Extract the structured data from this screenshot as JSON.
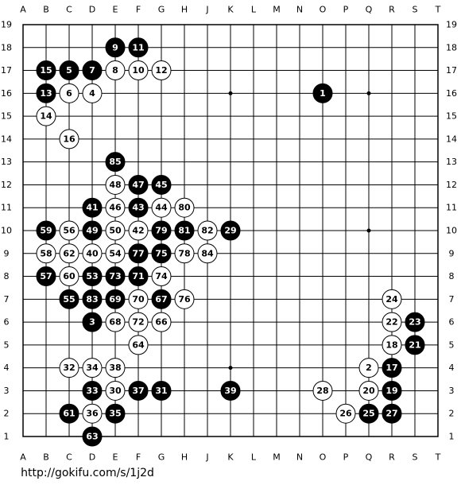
{
  "board": {
    "columns": [
      "A",
      "B",
      "C",
      "D",
      "E",
      "F",
      "G",
      "H",
      "J",
      "K",
      "L",
      "M",
      "N",
      "O",
      "P",
      "Q",
      "R",
      "S",
      "T"
    ],
    "rows": [
      19,
      18,
      17,
      16,
      15,
      14,
      13,
      12,
      11,
      10,
      9,
      8,
      7,
      6,
      5,
      4,
      3,
      2,
      1
    ],
    "stones": [
      {
        "point": "E18",
        "color": "black",
        "move": 9
      },
      {
        "point": "F18",
        "color": "black",
        "move": 11
      },
      {
        "point": "B17",
        "color": "black",
        "move": 15
      },
      {
        "point": "C17",
        "color": "black",
        "move": 5
      },
      {
        "point": "D17",
        "color": "black",
        "move": 7
      },
      {
        "point": "E17",
        "color": "white",
        "move": 8
      },
      {
        "point": "F17",
        "color": "white",
        "move": 10
      },
      {
        "point": "G17",
        "color": "white",
        "move": 12
      },
      {
        "point": "B16",
        "color": "black",
        "move": 13
      },
      {
        "point": "C16",
        "color": "white",
        "move": 6
      },
      {
        "point": "D16",
        "color": "white",
        "move": 4
      },
      {
        "point": "O16",
        "color": "black",
        "move": 1
      },
      {
        "point": "B15",
        "color": "white",
        "move": 14
      },
      {
        "point": "C14",
        "color": "white",
        "move": 16
      },
      {
        "point": "E13",
        "color": "black",
        "move": 85
      },
      {
        "point": "E12",
        "color": "white",
        "move": 48
      },
      {
        "point": "F12",
        "color": "black",
        "move": 47
      },
      {
        "point": "G12",
        "color": "black",
        "move": 45
      },
      {
        "point": "D11",
        "color": "black",
        "move": 41
      },
      {
        "point": "E11",
        "color": "white",
        "move": 46
      },
      {
        "point": "F11",
        "color": "black",
        "move": 43
      },
      {
        "point": "G11",
        "color": "white",
        "move": 44
      },
      {
        "point": "H11",
        "color": "white",
        "move": 80
      },
      {
        "point": "B10",
        "color": "black",
        "move": 59
      },
      {
        "point": "C10",
        "color": "white",
        "move": 56
      },
      {
        "point": "D10",
        "color": "black",
        "move": 49
      },
      {
        "point": "E10",
        "color": "white",
        "move": 50
      },
      {
        "point": "F10",
        "color": "white",
        "move": 42
      },
      {
        "point": "G10",
        "color": "black",
        "move": 79
      },
      {
        "point": "H10",
        "color": "black",
        "move": 81
      },
      {
        "point": "J10",
        "color": "white",
        "move": 82
      },
      {
        "point": "K10",
        "color": "black",
        "move": 29
      },
      {
        "point": "B9",
        "color": "white",
        "move": 58
      },
      {
        "point": "C9",
        "color": "white",
        "move": 62
      },
      {
        "point": "D9",
        "color": "white",
        "move": 40
      },
      {
        "point": "E9",
        "color": "white",
        "move": 54
      },
      {
        "point": "F9",
        "color": "black",
        "move": 77
      },
      {
        "point": "G9",
        "color": "black",
        "move": 75
      },
      {
        "point": "H9",
        "color": "white",
        "move": 78
      },
      {
        "point": "J9",
        "color": "white",
        "move": 84
      },
      {
        "point": "B8",
        "color": "black",
        "move": 57
      },
      {
        "point": "C8",
        "color": "white",
        "move": 60
      },
      {
        "point": "D8",
        "color": "black",
        "move": 53
      },
      {
        "point": "E8",
        "color": "black",
        "move": 73
      },
      {
        "point": "F8",
        "color": "black",
        "move": 71
      },
      {
        "point": "G8",
        "color": "white",
        "move": 74
      },
      {
        "point": "C7",
        "color": "black",
        "move": 55
      },
      {
        "point": "D7",
        "color": "black",
        "move": 83
      },
      {
        "point": "E7",
        "color": "black",
        "move": 69
      },
      {
        "point": "F7",
        "color": "white",
        "move": 70
      },
      {
        "point": "G7",
        "color": "black",
        "move": 67
      },
      {
        "point": "H7",
        "color": "white",
        "move": 76
      },
      {
        "point": "R7",
        "color": "white",
        "move": 24
      },
      {
        "point": "D6",
        "color": "black",
        "move": 3
      },
      {
        "point": "E6",
        "color": "white",
        "move": 68
      },
      {
        "point": "F6",
        "color": "white",
        "move": 72
      },
      {
        "point": "G6",
        "color": "white",
        "move": 66
      },
      {
        "point": "R6",
        "color": "white",
        "move": 22
      },
      {
        "point": "S6",
        "color": "black",
        "move": 23
      },
      {
        "point": "F5",
        "color": "white",
        "move": 64
      },
      {
        "point": "R5",
        "color": "white",
        "move": 18
      },
      {
        "point": "S5",
        "color": "black",
        "move": 21
      },
      {
        "point": "C4",
        "color": "white",
        "move": 32
      },
      {
        "point": "D4",
        "color": "white",
        "move": 34
      },
      {
        "point": "E4",
        "color": "white",
        "move": 38
      },
      {
        "point": "Q4",
        "color": "white",
        "move": 2
      },
      {
        "point": "R4",
        "color": "black",
        "move": 17
      },
      {
        "point": "D3",
        "color": "black",
        "move": 33
      },
      {
        "point": "E3",
        "color": "white",
        "move": 30
      },
      {
        "point": "F3",
        "color": "black",
        "move": 37
      },
      {
        "point": "G3",
        "color": "black",
        "move": 31
      },
      {
        "point": "K3",
        "color": "black",
        "move": 39
      },
      {
        "point": "O3",
        "color": "white",
        "move": 28
      },
      {
        "point": "Q3",
        "color": "white",
        "move": 20
      },
      {
        "point": "R3",
        "color": "black",
        "move": 19
      },
      {
        "point": "C2",
        "color": "black",
        "move": 61
      },
      {
        "point": "D2",
        "color": "white",
        "move": 36
      },
      {
        "point": "E2",
        "color": "black",
        "move": 35
      },
      {
        "point": "P2",
        "color": "white",
        "move": 26
      },
      {
        "point": "Q2",
        "color": "black",
        "move": 25
      },
      {
        "point": "R2",
        "color": "black",
        "move": 27
      },
      {
        "point": "D1",
        "color": "black",
        "move": 63
      }
    ]
  },
  "footer": {
    "url": "http://gokifu.com/s/1j2d"
  }
}
